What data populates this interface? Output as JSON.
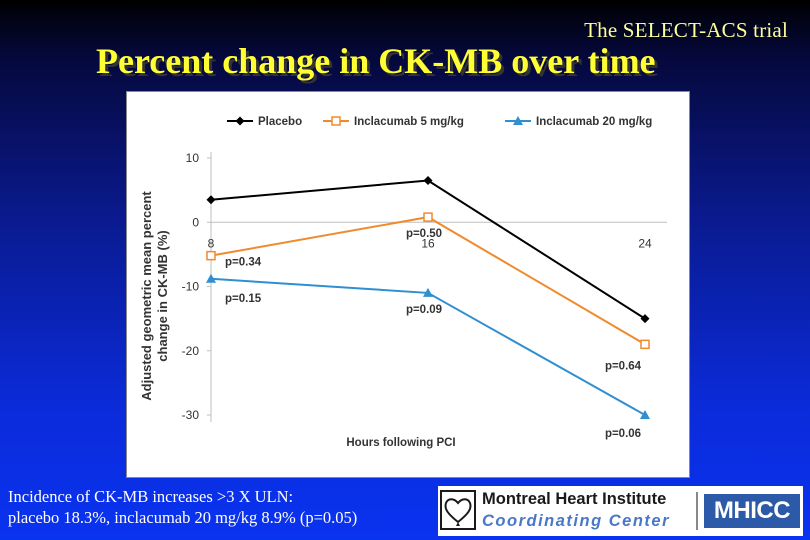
{
  "header": {
    "trial_name": "The SELECT-ACS trial",
    "title": "Percent change in CK-MB over time"
  },
  "caption": {
    "line1": "Incidence of CK-MB increases >3 X ULN:",
    "line2": "placebo 18.3%, inclacumab 20 mg/kg 8.9% (p=0.05)"
  },
  "footer": {
    "institute": "Montreal Heart Institute",
    "center": "Coordinating Center",
    "logo_text": "MHICC"
  },
  "chart_data": {
    "type": "line",
    "x": [
      8,
      16,
      24
    ],
    "xticks": [
      "8",
      "16",
      "24"
    ],
    "xlabel": "Hours following PCI",
    "ylabel_line1": "Adjusted geometric mean percent",
    "ylabel_line2": "change in CK-MB (%)",
    "ylim": [
      -30,
      10
    ],
    "yticks": [
      10,
      0,
      -10,
      -20,
      -30
    ],
    "grid": false,
    "legend_position": "top",
    "series": [
      {
        "name": "Placebo",
        "values": [
          3.5,
          6.5,
          -15
        ],
        "color": "#000000",
        "marker": "diamond"
      },
      {
        "name": "Inclacumab 5 mg/kg",
        "values": [
          -5.2,
          0.8,
          -19
        ],
        "color": "#f08a2c",
        "marker": "square"
      },
      {
        "name": "Inclacumab 20 mg/kg",
        "values": [
          -8.8,
          -11,
          -30
        ],
        "color": "#2f8fd0",
        "marker": "triangle"
      }
    ],
    "annotations": [
      {
        "text": "p=0.34",
        "x": 8,
        "y": -5.2
      },
      {
        "text": "p=0.50",
        "x": 16,
        "y": 0.8
      },
      {
        "text": "p=0.64",
        "x": 24,
        "y": -19
      },
      {
        "text": "p=0.15",
        "x": 8,
        "y": -8.8
      },
      {
        "text": "p=0.09",
        "x": 16,
        "y": -11
      },
      {
        "text": "p=0.06",
        "x": 24,
        "y": -30
      }
    ]
  }
}
